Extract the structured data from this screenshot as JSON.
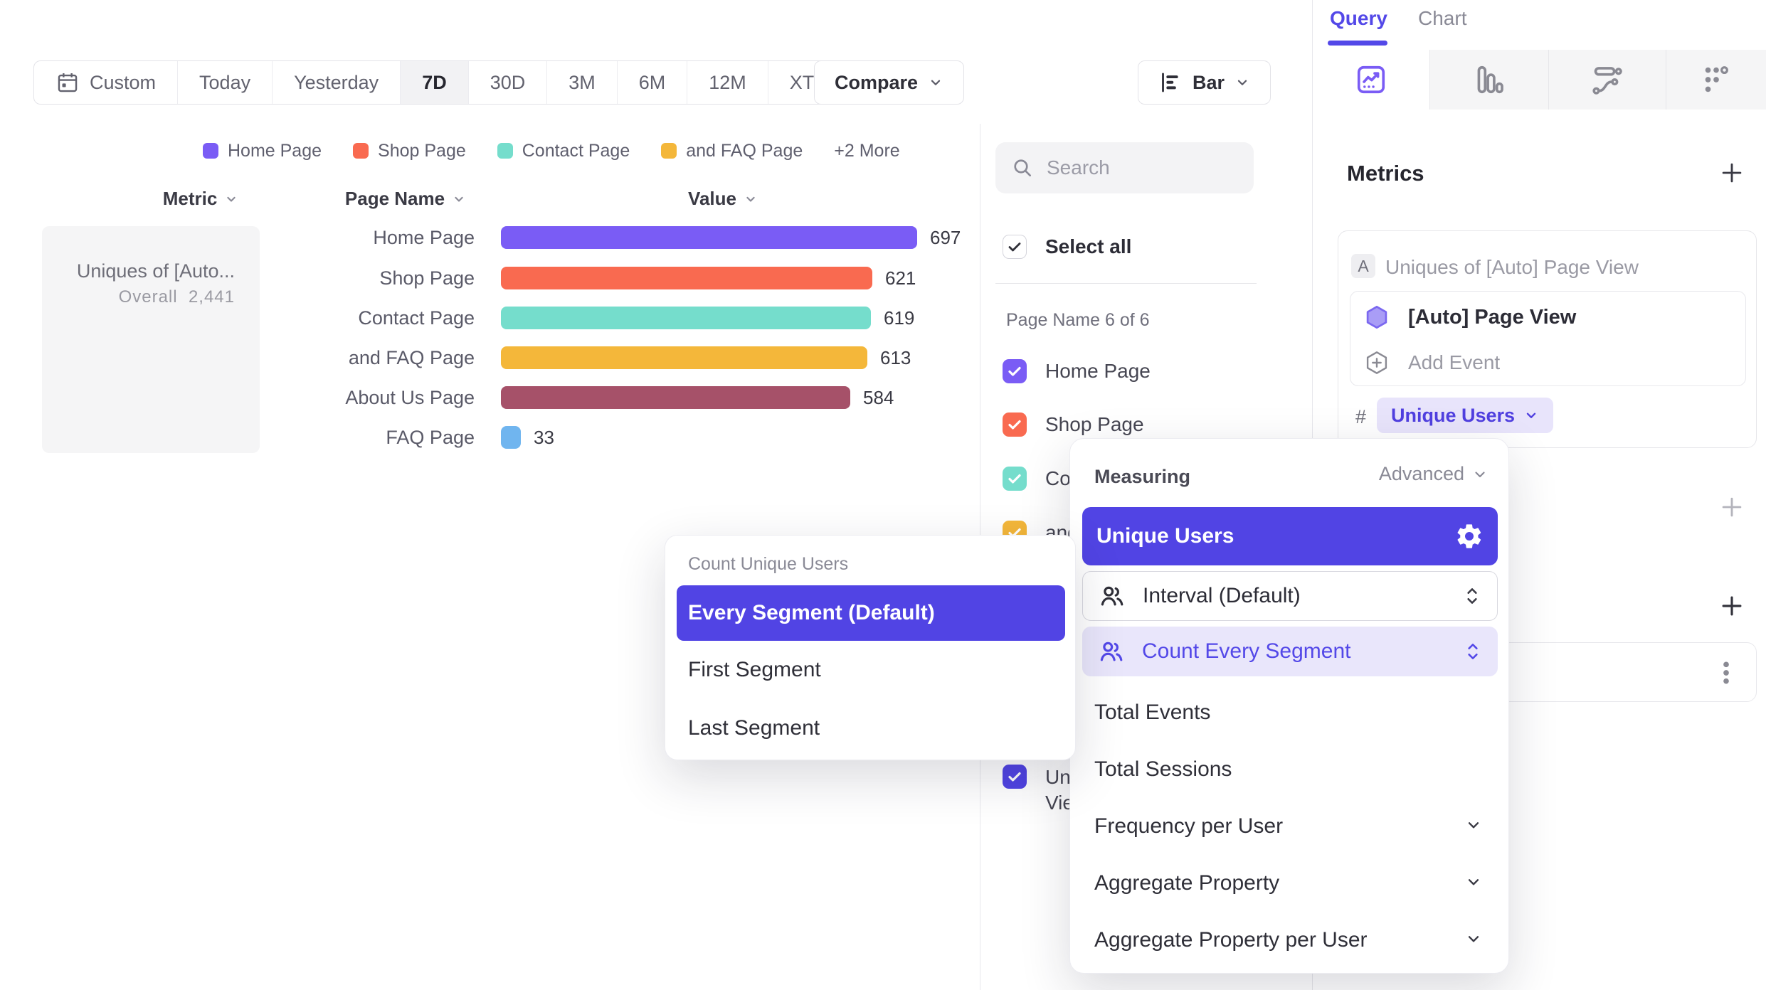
{
  "colors": {
    "accent_selected": "#5144e4",
    "accent_text": "#5348e8",
    "accent_light_bg": "#e9e6fb",
    "divider": "#e8e8ec"
  },
  "toolbar": {
    "ranges": [
      {
        "label": "Custom",
        "selected": false
      },
      {
        "label": "Today",
        "selected": false
      },
      {
        "label": "Yesterday",
        "selected": false
      },
      {
        "label": "7D",
        "selected": true
      },
      {
        "label": "30D",
        "selected": false
      },
      {
        "label": "3M",
        "selected": false
      },
      {
        "label": "6M",
        "selected": false
      },
      {
        "label": "12M",
        "selected": false
      },
      {
        "label": "XTD",
        "selected": false
      }
    ],
    "compare_label": "Compare",
    "chart_type_label": "Bar"
  },
  "legend": {
    "items": [
      {
        "label": "Home Page",
        "color": "#7a5cf5"
      },
      {
        "label": "Shop Page",
        "color": "#f96a50"
      },
      {
        "label": "Contact Page",
        "color": "#75ddcc"
      },
      {
        "label": "and FAQ Page",
        "color": "#f4b73a"
      }
    ],
    "more_label": "+2 More"
  },
  "table": {
    "metric_header": "Metric",
    "page_header": "Page Name",
    "value_header": "Value",
    "metric_title": "Uniques of [Auto...",
    "overall_label": "Overall",
    "overall_value": "2,441"
  },
  "chart_data": {
    "type": "bar",
    "orientation": "horizontal",
    "title": "Uniques of [Auto] Page View",
    "series_label": "Page Name",
    "xlabel": "Value",
    "overall_total": 2441,
    "categories": [
      "Home Page",
      "Shop Page",
      "Contact Page",
      "and FAQ Page",
      "About Us Page",
      "FAQ Page"
    ],
    "values": [
      697,
      621,
      619,
      613,
      584,
      33
    ],
    "colors": [
      "#7a5cf5",
      "#f96a50",
      "#75ddcc",
      "#f4b73a",
      "#a65169",
      "#70b5ef"
    ],
    "xlim": [
      0,
      697
    ],
    "legend_position": "top",
    "grid": false
  },
  "filter_panel": {
    "search_placeholder": "Search",
    "select_all_label": "Select all",
    "section_label": "Page Name 6 of 6",
    "items": [
      {
        "label": "Home Page",
        "color": "#7a5cf5",
        "checked": true
      },
      {
        "label": "Shop Page",
        "color": "#f96a50",
        "checked": true
      },
      {
        "label": "Contact Page",
        "color": "#75ddcc",
        "checked": true
      },
      {
        "label": "and FAQ Page",
        "color": "#f4b73a",
        "checked": true
      }
    ],
    "truncated_item": {
      "line1": "Uni",
      "line2": "Vie",
      "color": "#5144e4",
      "checked": true
    }
  },
  "query_panel": {
    "tabs": [
      {
        "label": "Query",
        "active": true
      },
      {
        "label": "Chart",
        "active": false
      }
    ],
    "report_tabs": [
      {
        "icon": "insights-icon",
        "active": true
      },
      {
        "icon": "funnels-icon",
        "active": false
      },
      {
        "icon": "flows-icon",
        "active": false
      },
      {
        "icon": "retention-icon",
        "active": false
      }
    ],
    "metrics_title": "Metrics",
    "metric_card": {
      "badge": "A",
      "title": "Uniques of [Auto] Page View",
      "event_name": "[Auto] Page View",
      "add_event_label": "Add Event",
      "hash": "#",
      "measure_label": "Unique Users"
    }
  },
  "count_dropdown": {
    "title": "Count Unique Users",
    "options": [
      {
        "label": "Every Segment (Default)",
        "selected": true
      },
      {
        "label": "First Segment",
        "selected": false
      },
      {
        "label": "Last Segment",
        "selected": false
      }
    ]
  },
  "measuring_panel": {
    "title": "Measuring",
    "advanced_label": "Advanced",
    "selected_measure": "Unique Users",
    "interval_label": "Interval (Default)",
    "segment_label": "Count Every Segment",
    "options": [
      {
        "label": "Total Events",
        "expandable": false
      },
      {
        "label": "Total Sessions",
        "expandable": false
      },
      {
        "label": "Frequency per User",
        "expandable": true
      },
      {
        "label": "Aggregate Property",
        "expandable": true
      },
      {
        "label": "Aggregate Property per User",
        "expandable": true
      }
    ]
  }
}
